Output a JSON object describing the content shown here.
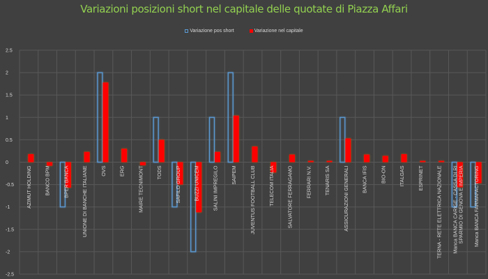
{
  "chart_data": {
    "type": "bar",
    "title": "Variazioni posizioni short nel capitale delle quotate di Piazza Affari",
    "legend_position": "top",
    "grid": true,
    "ylim": [
      -2.5,
      2.5
    ],
    "yticks": [
      "2.5",
      "2",
      "1.5",
      "1",
      "0.5",
      "0",
      "-0.5",
      "-1",
      "-1.5",
      "-2",
      "-2.5"
    ],
    "categories": [
      "AZIMUT HOLDING",
      "BANCO BPM",
      "BPER BANCA",
      "UNIONE DI BANCHE ITALIANE",
      "OVS",
      "ERG",
      "MAIRE TECNIMONT",
      "TODS",
      "SAFILO GROUP",
      "BUZZI UNICEM",
      "SALINI IMPREGILO",
      "SAIPEM",
      "JUVENTUS FOOTBALL CLUB",
      "TELECOM ITALIA",
      "SALVATORE FERRAGAMO",
      "FERRARI N.V.",
      "TENARIS SA",
      "ASSICURAZIONI GENERALI",
      "BANCA IFIS",
      "BIO-ON",
      "ITALGAS",
      "ESPRINET",
      "TERNA - RETE ELETTRICA NAZIONALE",
      "Manca  BANCA CARIGE - CASSA DI RISPARMIO DI GENOVA E IMPERIA",
      "Manca  BANCA FARMAFACTORING"
    ],
    "series": [
      {
        "name": "Variazione pos short",
        "color": "#5b9bd5",
        "style": "outline",
        "values": [
          0,
          0,
          -1,
          0,
          2,
          0,
          0,
          1,
          -1,
          -2,
          1,
          2,
          0,
          0,
          0,
          0,
          0,
          1,
          0,
          0,
          0,
          0,
          0,
          -1,
          -1
        ]
      },
      {
        "name": "Variazione nel capitale",
        "color": "#ff0000",
        "style": "filled",
        "values": [
          0.18,
          -0.08,
          -0.57,
          0.23,
          1.78,
          0.3,
          -0.07,
          0.5,
          -0.5,
          -1.12,
          0.23,
          1.04,
          0.35,
          -0.23,
          0.17,
          0.03,
          0.03,
          0.53,
          0.17,
          0.14,
          0.18,
          0.03,
          0.03,
          -0.56,
          -0.47
        ]
      }
    ]
  },
  "colors": {
    "background": "#404040",
    "title": "#92d050",
    "grid": "#595959",
    "text": "#d9d9d9"
  }
}
